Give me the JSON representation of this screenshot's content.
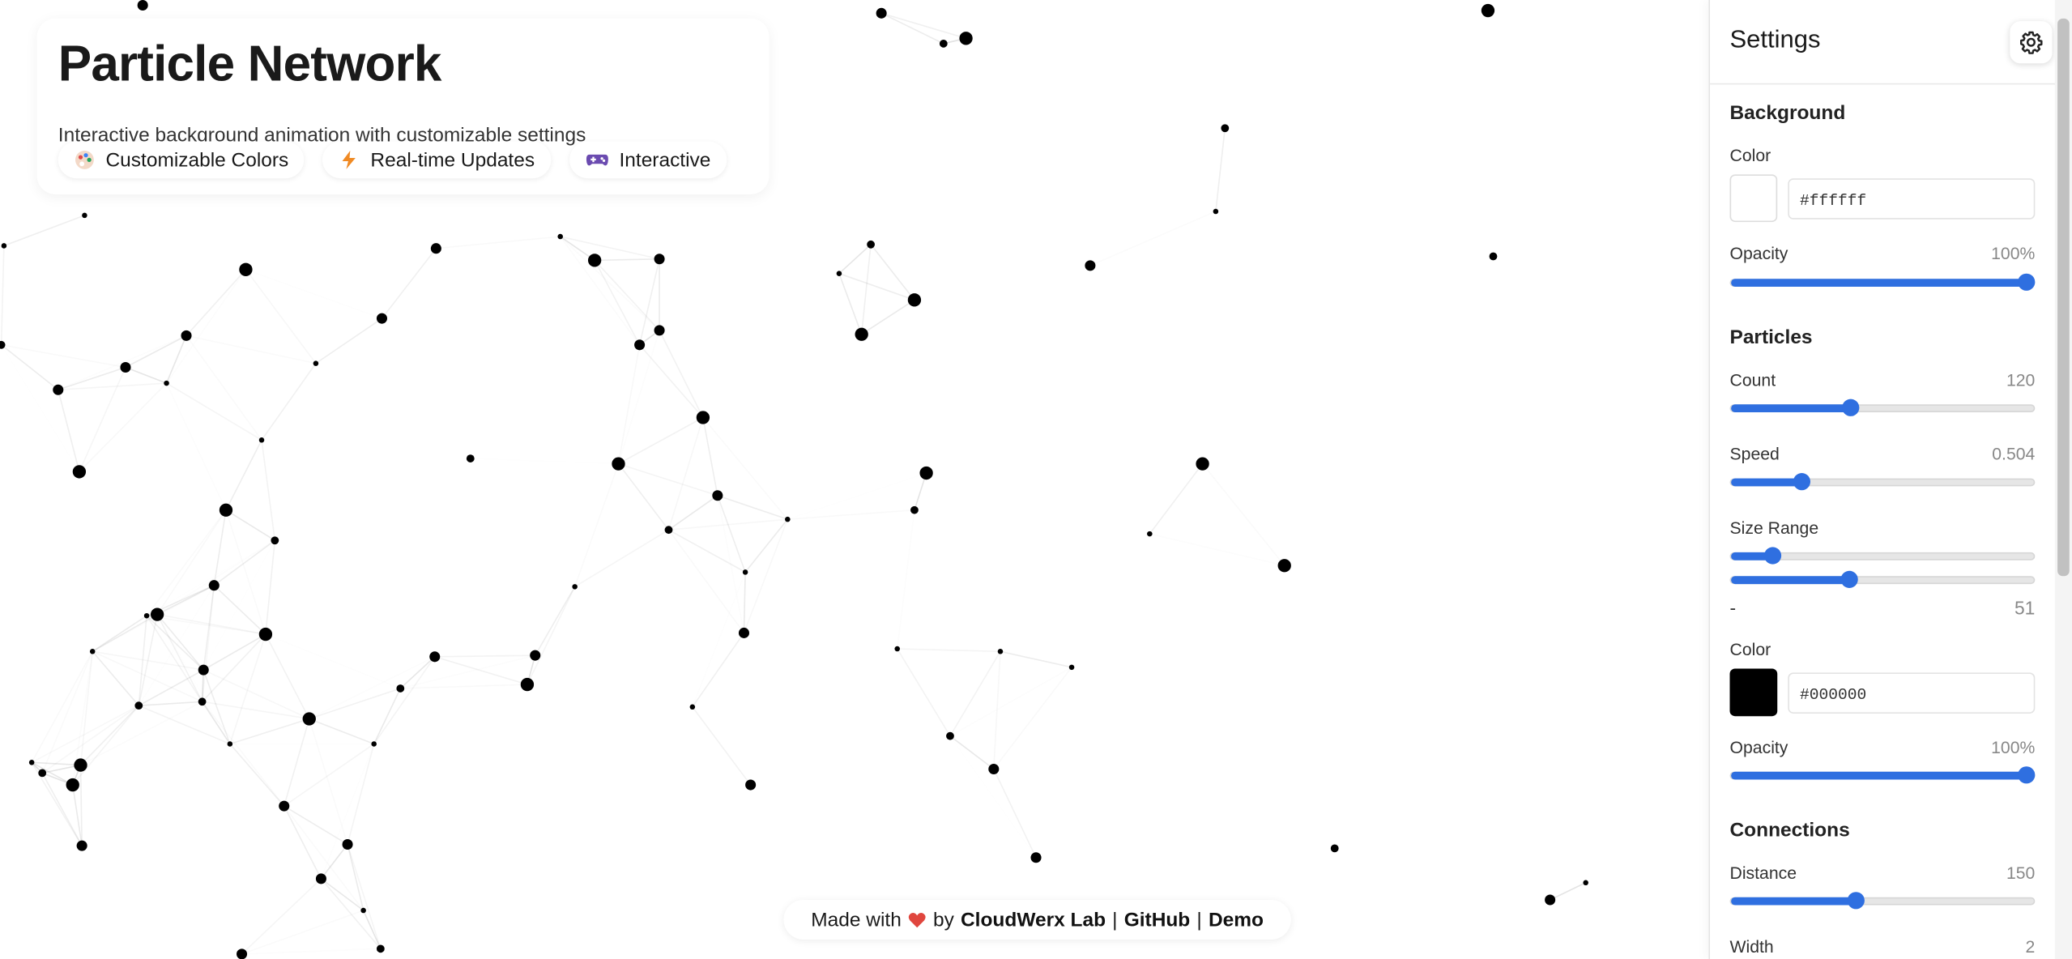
{
  "header": {
    "title": "Particle Network",
    "subtitle": "Interactive background animation with customizable settings",
    "badges": [
      "Customizable Colors",
      "Real-time Updates",
      "Interactive"
    ]
  },
  "settings": {
    "title": "Settings",
    "background": {
      "heading": "Background",
      "color_label": "Color",
      "color_value": "#ffffff",
      "opacity_label": "Opacity",
      "opacity_value": "100%"
    },
    "particles": {
      "heading": "Particles",
      "count_label": "Count",
      "count_value": "120",
      "speed_label": "Speed",
      "speed_value": "0.504",
      "size_label": "Size Range",
      "size_min": "-",
      "size_max": "51",
      "color_label": "Color",
      "color_value": "#000000",
      "opacity_label": "Opacity",
      "opacity_value": "100%"
    },
    "connections": {
      "heading": "Connections",
      "distance_label": "Distance",
      "distance_value": "150",
      "width_label": "Width",
      "width_value": "2"
    }
  },
  "footer": {
    "made_with": "Made with",
    "by": "by",
    "links": [
      "CloudWerx Lab",
      "GitHub",
      "Demo"
    ],
    "separator": "|"
  }
}
